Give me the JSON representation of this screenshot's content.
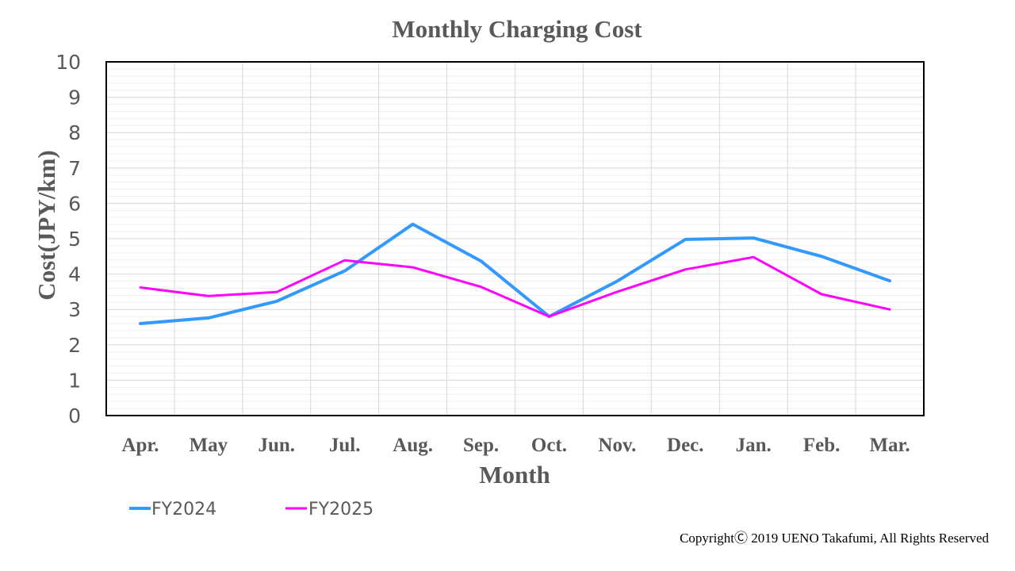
{
  "chart_data": {
    "type": "line",
    "title": "Monthly Charging Cost",
    "xlabel": "Month",
    "ylabel": "Cost(JPY/km)",
    "ylim": [
      0,
      10
    ],
    "yticks": [
      "0",
      "1",
      "2",
      "3",
      "4",
      "5",
      "6",
      "7",
      "8",
      "9",
      "10"
    ],
    "ytick_values": [
      0,
      1,
      2,
      3,
      4,
      5,
      6,
      7,
      8,
      9,
      10
    ],
    "minor_step": 0.2,
    "grid": true,
    "legend_position": "bottom-left",
    "categories": [
      "Apr.",
      "May",
      "Jun.",
      "Jul.",
      "Aug.",
      "Sep.",
      "Oct.",
      "Nov.",
      "Dec.",
      "Jan.",
      "Feb.",
      "Mar."
    ],
    "series": [
      {
        "name": "FY2024",
        "color": "#3399FF",
        "values": [
          2.6,
          2.76,
          3.23,
          4.09,
          5.41,
          4.37,
          2.8,
          3.8,
          4.98,
          5.02,
          4.5,
          3.81
        ]
      },
      {
        "name": "FY2025",
        "color": "#FF00FF",
        "values": [
          3.62,
          3.38,
          3.49,
          4.39,
          4.19,
          3.64,
          2.8,
          3.5,
          4.13,
          4.48,
          3.43,
          3.0
        ]
      }
    ]
  },
  "footer": {
    "copyright": "CopyrightⒸ 2019 UENO Takafumi, All Rights Reserved"
  }
}
